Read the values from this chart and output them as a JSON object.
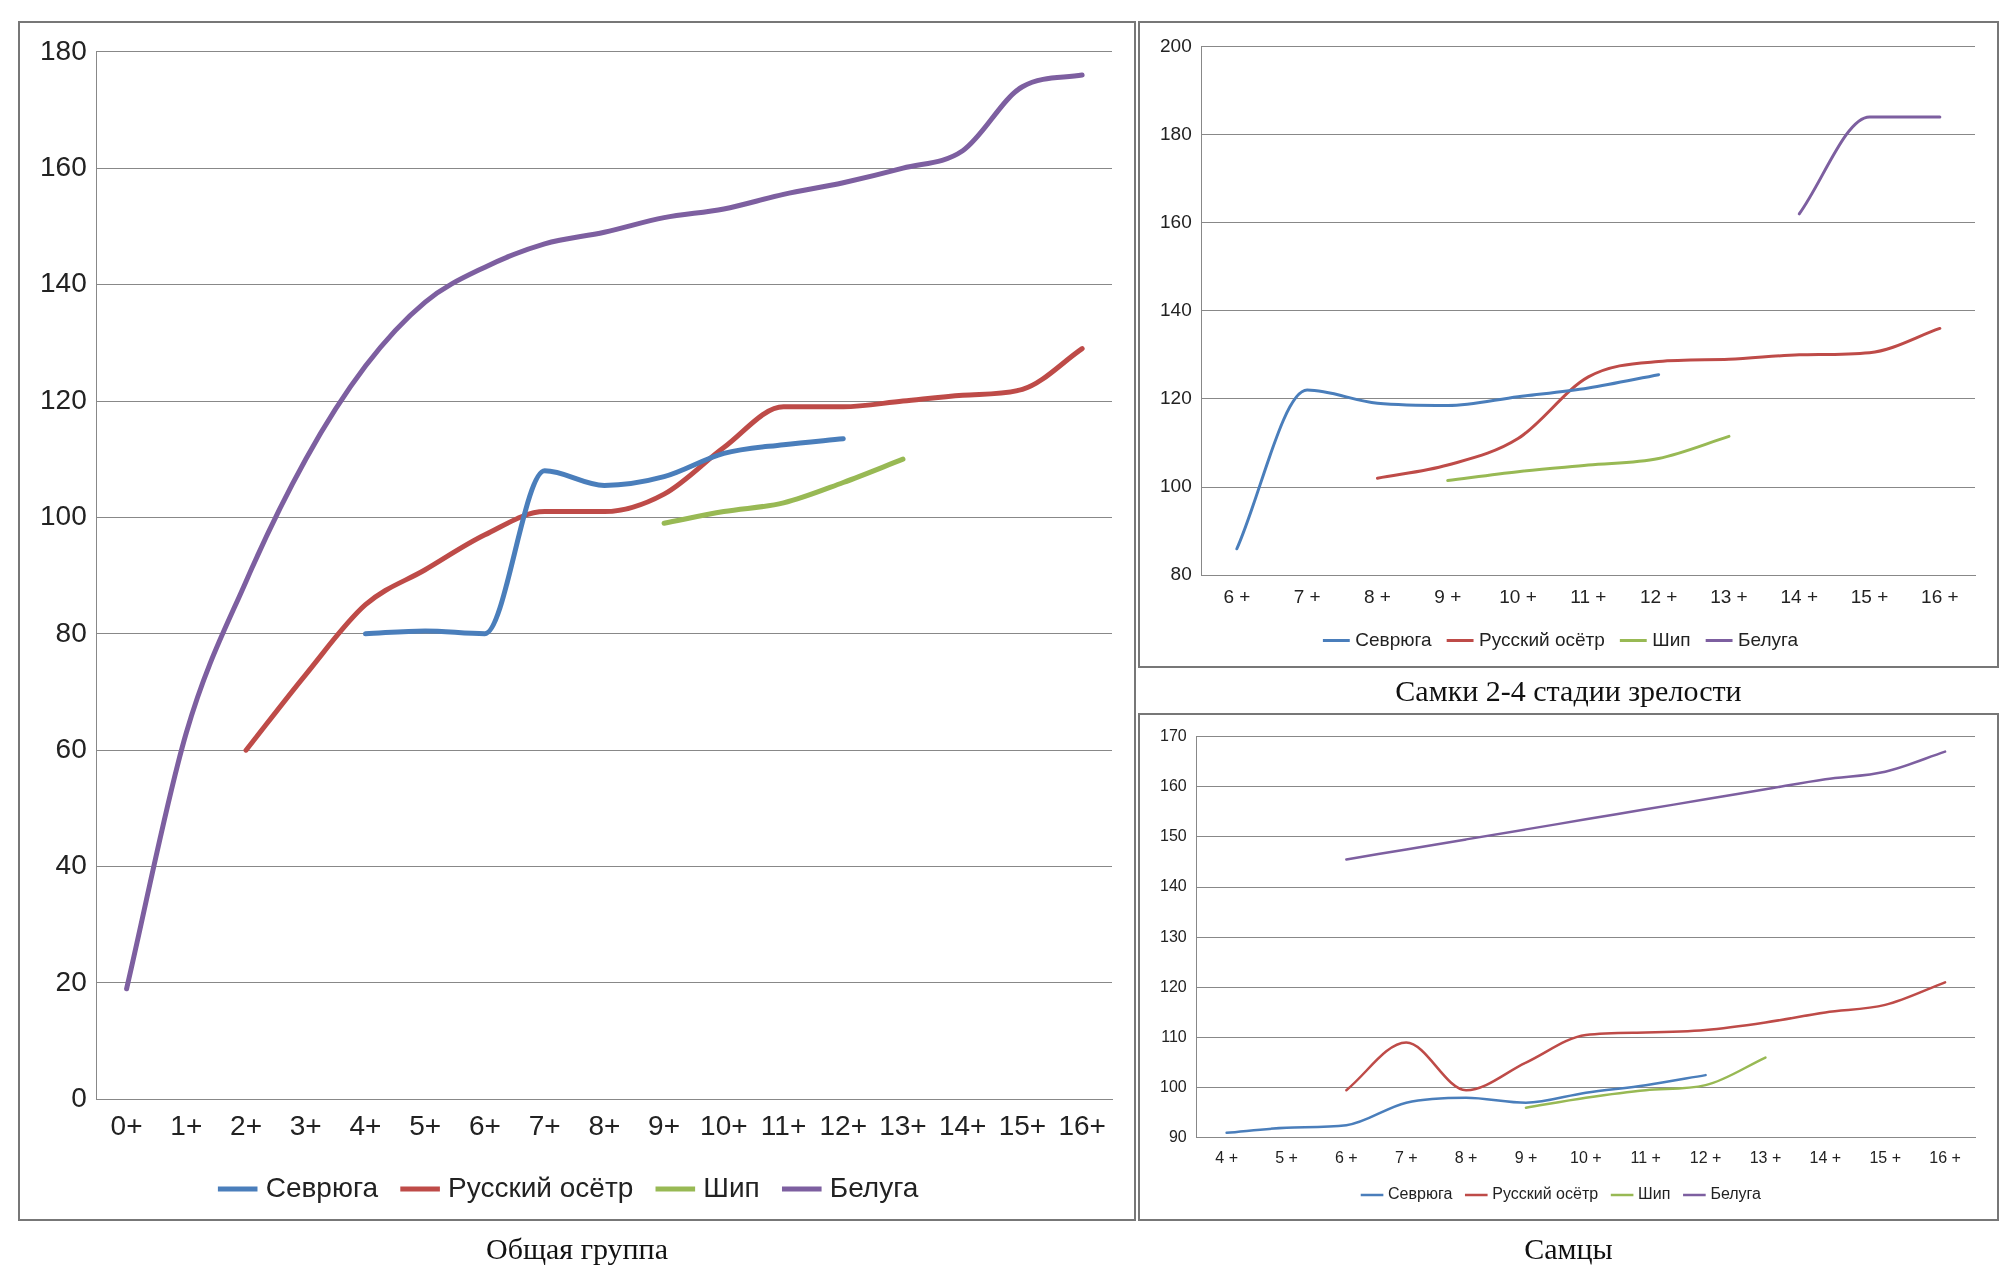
{
  "chart_data": [
    {
      "type": "line",
      "title": "Общая группа",
      "categories": [
        "0+",
        "1+",
        "2+",
        "3+",
        "4+",
        "5+",
        "6+",
        "7+",
        "8+",
        "9+",
        "10+",
        "11+",
        "12+",
        "13+",
        "14+",
        "15+",
        "16+"
      ],
      "ylim": [
        0,
        180
      ],
      "yticks": [
        0,
        20,
        40,
        60,
        80,
        100,
        120,
        140,
        160,
        180
      ],
      "grid": "y",
      "legend": "bottom",
      "marker": "none",
      "line_style": "solid",
      "series": [
        {
          "name": "Севрюга",
          "color": "#4a7ebb",
          "values": [
            null,
            null,
            null,
            null,
            80,
            80.5,
            80,
            108,
            105.5,
            107,
            111,
            112.5,
            113.5,
            null,
            null,
            null,
            null
          ]
        },
        {
          "name": "Русский осётр",
          "color": "#be4b48",
          "values": [
            null,
            null,
            60,
            73,
            85,
            91,
            97,
            101,
            101,
            104,
            112,
            119,
            119,
            120,
            121,
            122,
            129
          ]
        },
        {
          "name": "Шип",
          "color": "#98b954",
          "values": [
            null,
            null,
            null,
            null,
            null,
            null,
            null,
            null,
            null,
            99,
            101,
            102.5,
            106,
            110,
            null,
            null,
            null
          ]
        },
        {
          "name": "Белуга",
          "color": "#7d5fa0",
          "values": [
            19,
            63,
            89,
            110,
            126,
            137,
            143,
            147,
            149,
            151.5,
            153,
            155.5,
            157.5,
            160,
            163,
            174,
            176
          ]
        }
      ]
    },
    {
      "type": "line",
      "title": "Самки 2-4 стадии зрелости",
      "categories": [
        "6 +",
        "7 +",
        "8 +",
        "9 +",
        "10 +",
        "11 +",
        "12 +",
        "13 +",
        "14 +",
        "15 +",
        "16 +"
      ],
      "ylim": [
        80,
        200
      ],
      "yticks": [
        80,
        100,
        120,
        140,
        160,
        180,
        200
      ],
      "grid": "y",
      "legend": "bottom",
      "marker": "none",
      "line_style": "solid",
      "series": [
        {
          "name": "Севрюга",
          "color": "#4a7ebb",
          "values": [
            86,
            122,
            119,
            118.5,
            120.5,
            122.5,
            125.5,
            null,
            null,
            null,
            null
          ]
        },
        {
          "name": "Русский осётр",
          "color": "#be4b48",
          "values": [
            null,
            null,
            102,
            105,
            111,
            125,
            128.5,
            129,
            130,
            130.5,
            136
          ]
        },
        {
          "name": "Шип",
          "color": "#98b954",
          "values": [
            null,
            null,
            null,
            101.5,
            103.5,
            105,
            106.5,
            111.5,
            null,
            null,
            null
          ]
        },
        {
          "name": "Белуга",
          "color": "#7d5fa0",
          "values": [
            null,
            null,
            null,
            null,
            null,
            null,
            null,
            null,
            162,
            184,
            184
          ]
        }
      ]
    },
    {
      "type": "line",
      "title": "Самцы",
      "categories": [
        "4 +",
        "5 +",
        "6 +",
        "7 +",
        "8 +",
        "9 +",
        "10 +",
        "11 +",
        "12 +",
        "13 +",
        "14 +",
        "15 +",
        "16 +"
      ],
      "ylim": [
        90,
        170
      ],
      "yticks": [
        90,
        100,
        110,
        120,
        130,
        140,
        150,
        160,
        170
      ],
      "grid": "y",
      "legend": "bottom",
      "marker": "none",
      "line_style": "solid",
      "series": [
        {
          "name": "Севрюга",
          "color": "#4a7ebb",
          "values": [
            91,
            92,
            92.5,
            97,
            98,
            97,
            99,
            100.5,
            102.5,
            null,
            null,
            null,
            null
          ]
        },
        {
          "name": "Русский осётр",
          "color": "#be4b48",
          "values": [
            null,
            null,
            99.5,
            109,
            99.5,
            105,
            110.5,
            111,
            111.5,
            113,
            115,
            116.5,
            121
          ]
        },
        {
          "name": "Шип",
          "color": "#98b954",
          "values": [
            null,
            null,
            null,
            null,
            null,
            96,
            98,
            99.5,
            100.5,
            106,
            null,
            null,
            null
          ]
        },
        {
          "name": "Белуга",
          "color": "#7d5fa0",
          "values": [
            null,
            null,
            145.5,
            147.5,
            149.5,
            151.5,
            153.5,
            155.5,
            157.5,
            159.5,
            161.5,
            163,
            167
          ]
        }
      ]
    }
  ]
}
